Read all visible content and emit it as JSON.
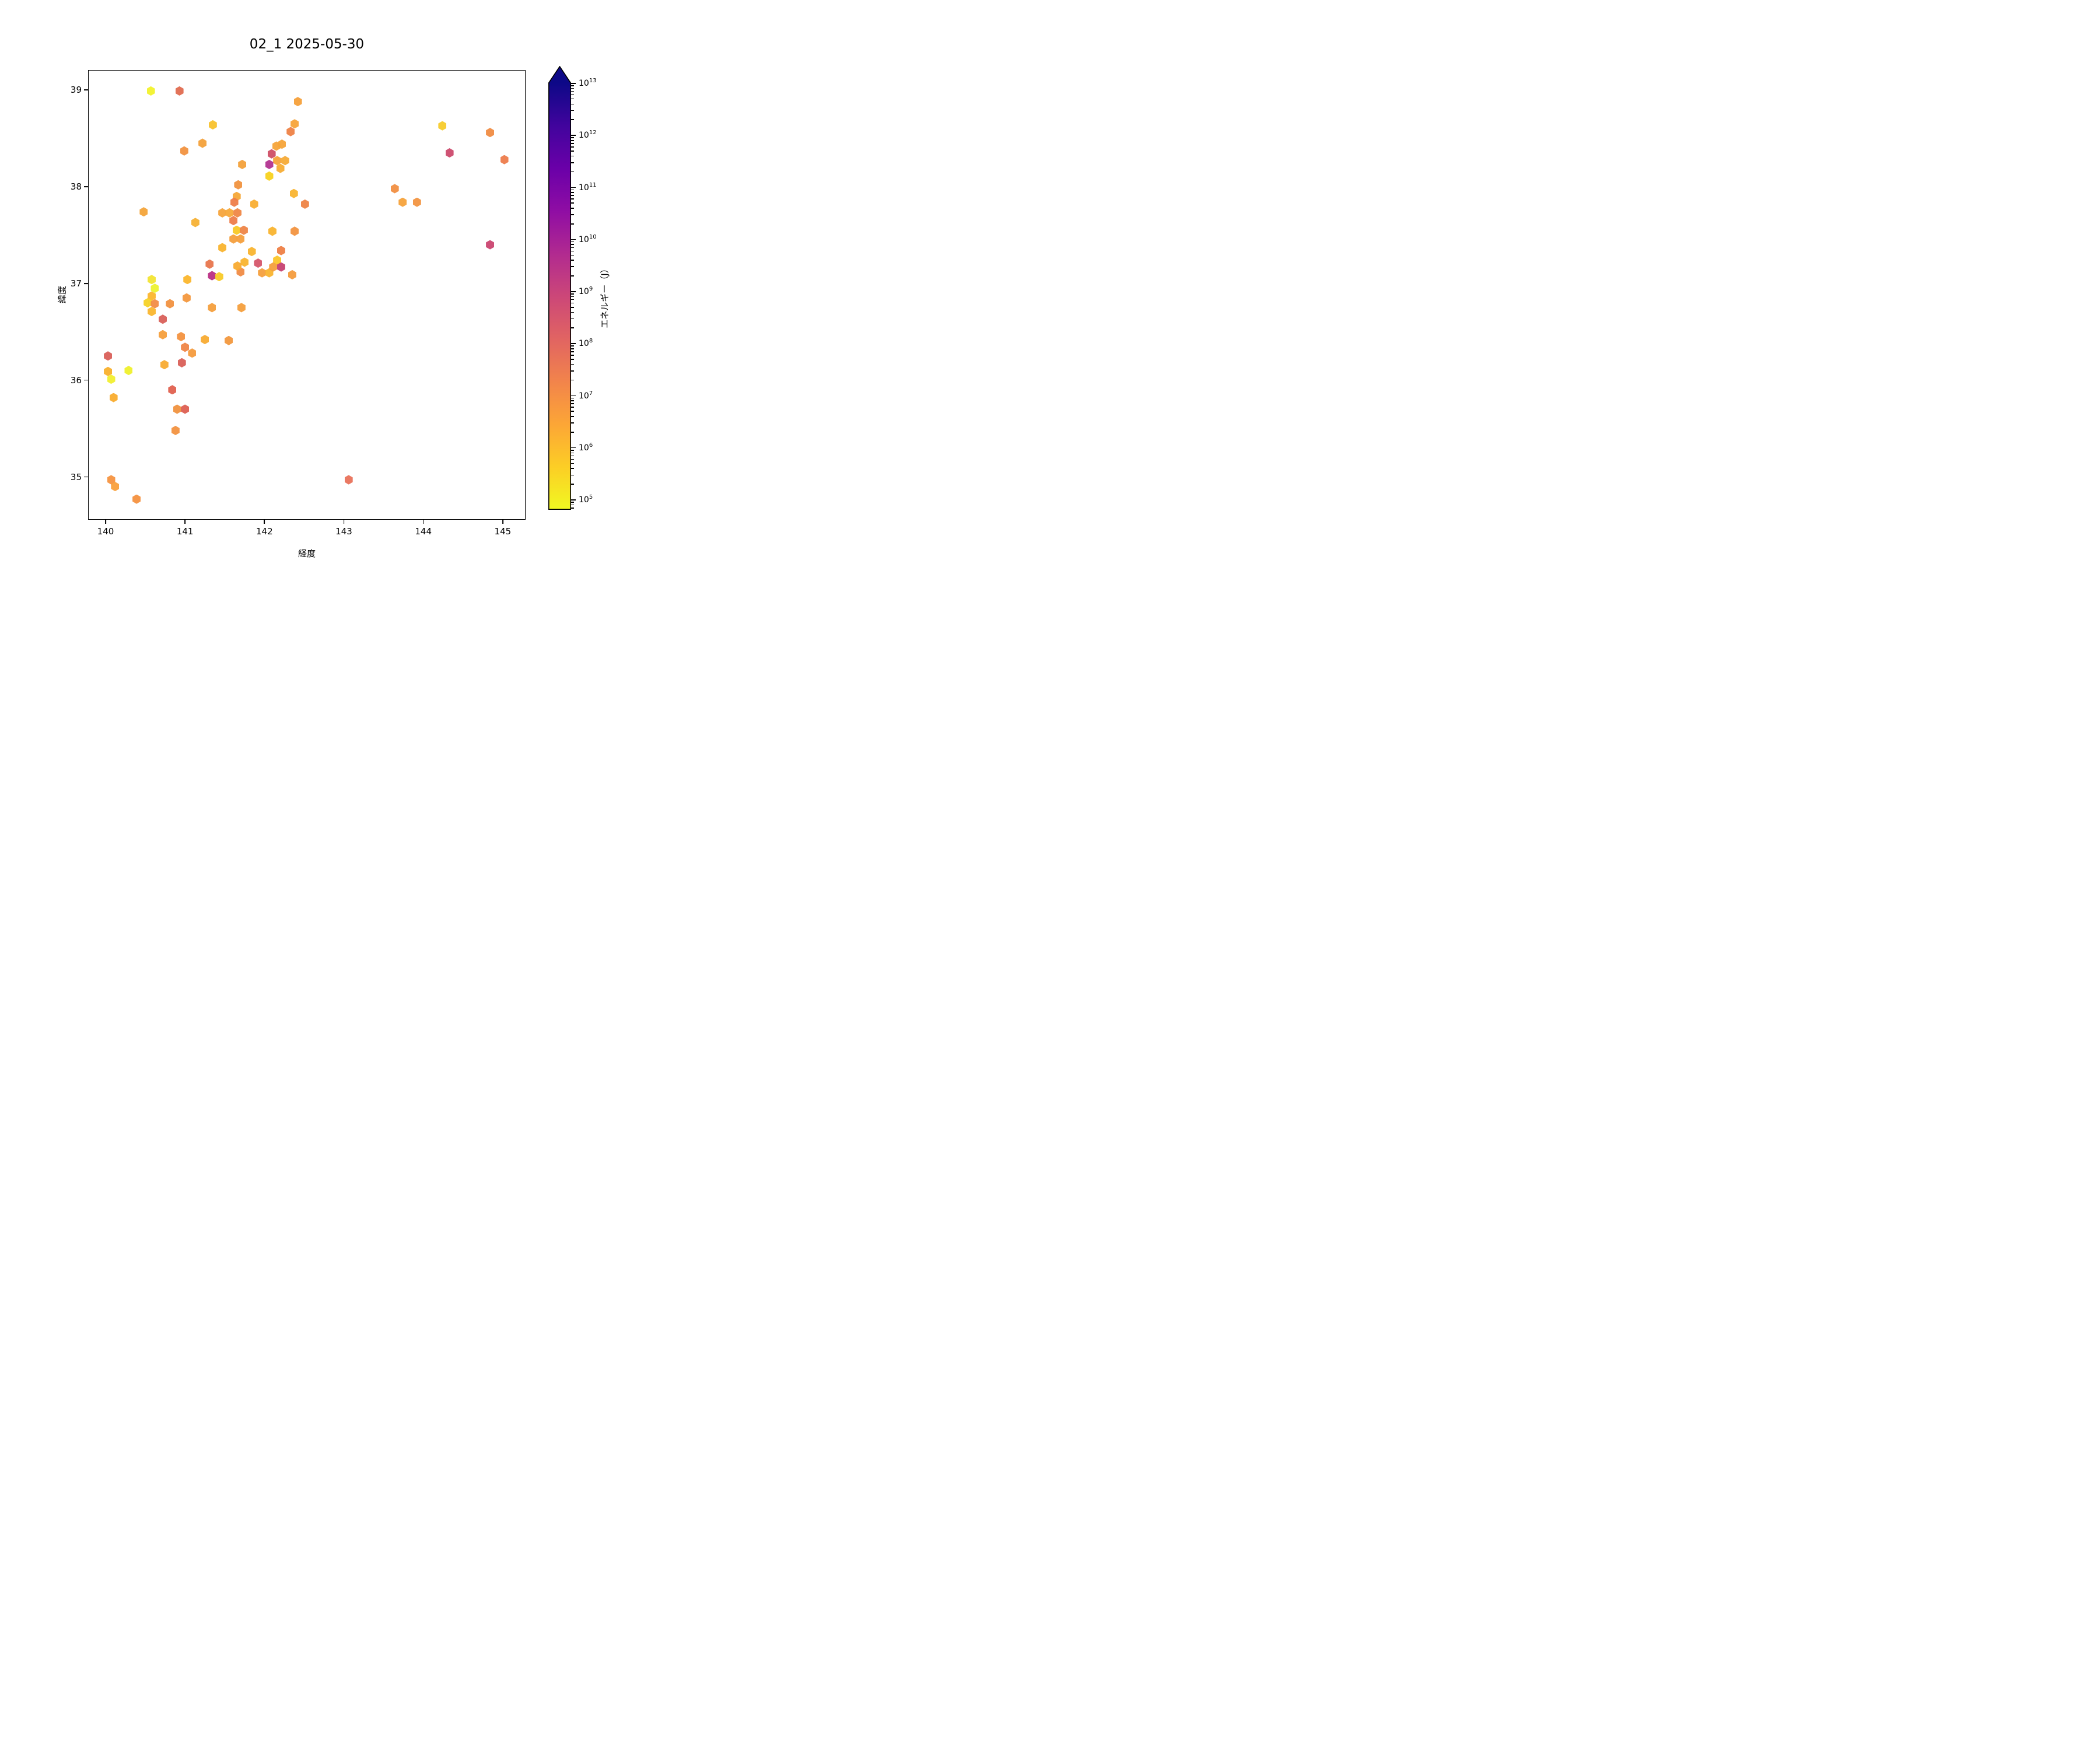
{
  "title": "02_1 2025-05-30",
  "axes": {
    "xlabel": "経度",
    "ylabel": "緯度",
    "xticks": [
      140,
      141,
      142,
      143,
      144,
      145
    ],
    "yticks": [
      35,
      36,
      37,
      38,
      39
    ],
    "xlim": [
      139.78,
      145.29
    ],
    "ylim": [
      34.55,
      39.2
    ],
    "grid": false
  },
  "colorbar": {
    "label": "エネルギー（J）",
    "colormap": "plasma_r",
    "scale": "log",
    "extend": "max",
    "vmin_exp": 4.8,
    "vmax_exp": 13,
    "tick_exponents": [
      5,
      6,
      7,
      8,
      9,
      10,
      11,
      12,
      13
    ],
    "gradient_stops": [
      {
        "t": 0.0,
        "color": "#0d0887"
      },
      {
        "t": 0.1,
        "color": "#41049d"
      },
      {
        "t": 0.2,
        "color": "#6a00a8"
      },
      {
        "t": 0.3,
        "color": "#8f0da4"
      },
      {
        "t": 0.4,
        "color": "#b12a90"
      },
      {
        "t": 0.5,
        "color": "#cc4778"
      },
      {
        "t": 0.6,
        "color": "#e16462"
      },
      {
        "t": 0.7,
        "color": "#f2844b"
      },
      {
        "t": 0.8,
        "color": "#fca636"
      },
      {
        "t": 0.9,
        "color": "#fcce25"
      },
      {
        "t": 1.0,
        "color": "#f0f921"
      }
    ]
  },
  "chart_data": {
    "type": "scatter",
    "marker": "hexagon",
    "title": "02_1 2025-05-30",
    "xlabel": "経度",
    "ylabel": "緯度",
    "legend": "colorbar (energy, J, log scale 1e5–1e13, plasma reversed)",
    "point_fields": [
      "lon",
      "lat",
      "color",
      "energy_J_approx"
    ],
    "points": [
      [
        140.57,
        38.99,
        "#f2f22c",
        100000.0
      ],
      [
        140.93,
        38.99,
        "#e06c50",
        120000000.0
      ],
      [
        142.42,
        38.88,
        "#f6a03a",
        8000000.0
      ],
      [
        142.38,
        38.65,
        "#f7a43a",
        7000000.0
      ],
      [
        142.33,
        38.57,
        "#ee8246",
        60000000.0
      ],
      [
        141.35,
        38.64,
        "#f8c22e",
        1500000.0
      ],
      [
        144.24,
        38.63,
        "#f7cb2c",
        1200000.0
      ],
      [
        144.84,
        38.56,
        "#f08c43",
        35000000.0
      ],
      [
        142.15,
        38.42,
        "#f6a43a",
        7000000.0
      ],
      [
        142.22,
        38.44,
        "#f6a43a",
        7000000.0
      ],
      [
        142.09,
        38.34,
        "#cf4f66",
        800000000.0
      ],
      [
        141.22,
        38.45,
        "#f3a13b",
        9000000.0
      ],
      [
        140.99,
        38.37,
        "#f19240",
        25000000.0
      ],
      [
        144.33,
        38.35,
        "#cc4a6d",
        1000000000.0
      ],
      [
        142.16,
        38.27,
        "#f5a43a",
        7000000.0
      ],
      [
        142.26,
        38.27,
        "#f6ab37",
        5000000.0
      ],
      [
        145.02,
        38.28,
        "#ed7c4c",
        90000000.0
      ],
      [
        142.2,
        38.19,
        "#f7ad35",
        4000000.0
      ],
      [
        142.06,
        38.23,
        "#b23390",
        3000000000.0
      ],
      [
        141.72,
        38.23,
        "#f3a13b",
        9000000.0
      ],
      [
        142.06,
        38.11,
        "#f8d21e",
        600000.0
      ],
      [
        141.67,
        38.02,
        "#f0923f",
        25000000.0
      ],
      [
        141.65,
        37.9,
        "#f5a838",
        6000000.0
      ],
      [
        142.37,
        37.93,
        "#f9b430",
        2000000.0
      ],
      [
        143.64,
        37.98,
        "#f18f42",
        30000000.0
      ],
      [
        142.51,
        37.82,
        "#ee8447",
        55000000.0
      ],
      [
        141.87,
        37.82,
        "#f9ae33",
        3000000.0
      ],
      [
        143.74,
        37.84,
        "#f6a23b",
        7500000.0
      ],
      [
        143.92,
        37.84,
        "#f29542",
        20000000.0
      ],
      [
        141.47,
        37.73,
        "#f5a43c",
        7000000.0
      ],
      [
        141.56,
        37.73,
        "#f7a93a",
        5000000.0
      ],
      [
        141.66,
        37.73,
        "#ef8746",
        45000000.0
      ],
      [
        140.48,
        37.74,
        "#f3a43a",
        7000000.0
      ],
      [
        141.62,
        37.84,
        "#ee7d49",
        80000000.0
      ],
      [
        141.61,
        37.65,
        "#ed7d4a",
        80000000.0
      ],
      [
        141.65,
        37.55,
        "#f8c927",
        1000000.0
      ],
      [
        141.74,
        37.55,
        "#ee8547",
        50000000.0
      ],
      [
        141.61,
        37.46,
        "#f49f3d",
        10000000.0
      ],
      [
        141.7,
        37.46,
        "#f49f3d",
        10000000.0
      ],
      [
        141.47,
        37.37,
        "#f9b42f",
        2000000.0
      ],
      [
        142.1,
        37.54,
        "#f9b42f",
        2000000.0
      ],
      [
        142.38,
        37.54,
        "#f29340",
        22000000.0
      ],
      [
        141.13,
        37.63,
        "#f6b135",
        2800000.0
      ],
      [
        141.84,
        37.33,
        "#f9b42f",
        2000000.0
      ],
      [
        142.21,
        37.34,
        "#ee8046",
        60000000.0
      ],
      [
        142.16,
        37.24,
        "#fbc62b",
        1200000.0
      ],
      [
        141.75,
        37.22,
        "#f9b42f",
        2000000.0
      ],
      [
        141.92,
        37.21,
        "#d5566a",
        500000000.0
      ],
      [
        141.7,
        37.12,
        "#f08b45",
        35000000.0
      ],
      [
        141.97,
        37.11,
        "#f49f3d",
        10000000.0
      ],
      [
        142.06,
        37.11,
        "#f9b42f",
        2000000.0
      ],
      [
        142.35,
        37.09,
        "#f49c3d",
        10000000.0
      ],
      [
        141.66,
        37.18,
        "#f8ab31",
        3500000.0
      ],
      [
        142.11,
        37.17,
        "#f49f3d",
        10000000.0
      ],
      [
        142.21,
        37.17,
        "#c64171",
        1100000000.0
      ],
      [
        141.31,
        37.2,
        "#e8764d",
        70000000.0
      ],
      [
        141.34,
        37.08,
        "#b92f84",
        2000000000.0
      ],
      [
        141.43,
        37.07,
        "#f8ca28",
        1000000.0
      ],
      [
        141.03,
        37.04,
        "#fbb62d",
        1800000.0
      ],
      [
        140.58,
        37.04,
        "#f2e433",
        150000.0
      ],
      [
        140.62,
        36.95,
        "#ecf22e",
        90000.0
      ],
      [
        140.58,
        36.87,
        "#fbb62d",
        1800000.0
      ],
      [
        140.53,
        36.8,
        "#f5d226",
        400000.0
      ],
      [
        140.62,
        36.79,
        "#f28c44",
        32000000.0
      ],
      [
        140.81,
        36.79,
        "#f19140",
        26000000.0
      ],
      [
        141.02,
        36.85,
        "#f3983e",
        16000000.0
      ],
      [
        141.34,
        36.75,
        "#f49f3d",
        10000000.0
      ],
      [
        141.71,
        36.75,
        "#f49f3d",
        10000000.0
      ],
      [
        140.58,
        36.71,
        "#fab62e",
        1800000.0
      ],
      [
        140.72,
        36.63,
        "#d9605a",
        200000000.0
      ],
      [
        140.72,
        36.47,
        "#f59f3c",
        10000000.0
      ],
      [
        141.55,
        36.41,
        "#f2983e",
        16000000.0
      ],
      [
        140.95,
        36.45,
        "#f39240",
        24000000.0
      ],
      [
        141.25,
        36.42,
        "#f8ab31",
        3500000.0
      ],
      [
        141.0,
        36.34,
        "#ef8546",
        50000000.0
      ],
      [
        141.09,
        36.28,
        "#f49b3e",
        12000000.0
      ],
      [
        140.96,
        36.18,
        "#d96058",
        200000000.0
      ],
      [
        140.74,
        36.16,
        "#f8ab31",
        3500000.0
      ],
      [
        140.03,
        36.25,
        "#d9605a",
        200000000.0
      ],
      [
        140.03,
        36.09,
        "#f9b02c",
        2500000.0
      ],
      [
        140.07,
        36.01,
        "#f1ef30",
        120000.0
      ],
      [
        140.29,
        36.1,
        "#eff02c",
        100000.0
      ],
      [
        140.1,
        35.82,
        "#f9ac2e",
        2800000.0
      ],
      [
        140.84,
        35.9,
        "#e0614f",
        160000000.0
      ],
      [
        140.9,
        35.7,
        "#f0923f",
        25000000.0
      ],
      [
        141.0,
        35.7,
        "#dd5f52",
        180000000.0
      ],
      [
        140.88,
        35.48,
        "#f29240",
        24000000.0
      ],
      [
        140.07,
        34.97,
        "#f59440",
        20000000.0
      ],
      [
        140.12,
        34.9,
        "#f9a03c",
        12000000.0
      ],
      [
        140.39,
        34.77,
        "#f4913f",
        26000000.0
      ],
      [
        143.06,
        34.97,
        "#e9725b",
        100000000.0
      ],
      [
        144.84,
        37.4,
        "#ca4570",
        1200000000.0
      ]
    ]
  }
}
